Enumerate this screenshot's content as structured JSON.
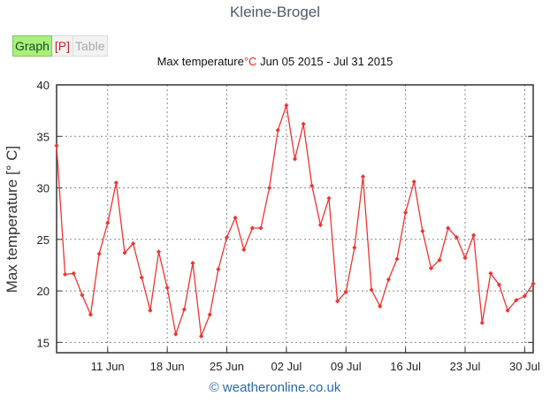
{
  "page": {
    "title": "Kleine-Brogel"
  },
  "tabs": [
    {
      "label": "Graph",
      "active": true
    },
    {
      "label": "[P]"
    },
    {
      "label": "Table"
    }
  ],
  "credit": {
    "symbol": "©",
    "text": "weatheronline.co.uk"
  },
  "colors": {
    "series": "#ee3333",
    "grid": "#888888",
    "tab_active": "#a8f07c",
    "credit": "#2a6aaa"
  },
  "chart_data": {
    "type": "line",
    "title": "Max temperature",
    "title_unit": "°C",
    "title_range": "Jun 05 2015 - Jul 31 2015",
    "ylabel": "Max temperature [° C]",
    "xlabel": "",
    "ylim": [
      14,
      40
    ],
    "yticks": [
      15,
      20,
      25,
      30,
      35,
      40
    ],
    "xlim": [
      "2015-06-05",
      "2015-07-31"
    ],
    "xticks": [
      {
        "date": "2015-06-11",
        "label": "11 Jun"
      },
      {
        "date": "2015-06-18",
        "label": "18 Jun"
      },
      {
        "date": "2015-06-25",
        "label": "25 Jun"
      },
      {
        "date": "2015-07-02",
        "label": "02 Jul"
      },
      {
        "date": "2015-07-09",
        "label": "09 Jul"
      },
      {
        "date": "2015-07-16",
        "label": "16 Jul"
      },
      {
        "date": "2015-07-23",
        "label": "23 Jul"
      },
      {
        "date": "2015-07-30",
        "label": "30 Jul"
      }
    ],
    "grid": true,
    "series": [
      {
        "x": [
          "2015-06-05",
          "2015-06-06",
          "2015-06-07",
          "2015-06-08",
          "2015-06-09",
          "2015-06-10",
          "2015-06-11",
          "2015-06-12",
          "2015-06-13",
          "2015-06-14",
          "2015-06-15",
          "2015-06-16",
          "2015-06-17",
          "2015-06-18",
          "2015-06-19",
          "2015-06-20",
          "2015-06-21",
          "2015-06-22",
          "2015-06-23",
          "2015-06-24",
          "2015-06-25",
          "2015-06-26",
          "2015-06-27",
          "2015-06-28",
          "2015-06-29",
          "2015-06-30",
          "2015-07-01",
          "2015-07-02",
          "2015-07-03",
          "2015-07-04",
          "2015-07-05",
          "2015-07-06",
          "2015-07-07",
          "2015-07-08",
          "2015-07-09",
          "2015-07-10",
          "2015-07-11",
          "2015-07-12",
          "2015-07-13",
          "2015-07-14",
          "2015-07-15",
          "2015-07-16",
          "2015-07-17",
          "2015-07-18",
          "2015-07-19",
          "2015-07-20",
          "2015-07-21",
          "2015-07-22",
          "2015-07-23",
          "2015-07-24",
          "2015-07-25",
          "2015-07-26",
          "2015-07-27",
          "2015-07-28",
          "2015-07-29",
          "2015-07-30",
          "2015-07-31"
        ],
        "values": [
          34.1,
          21.6,
          21.7,
          19.6,
          17.7,
          23.6,
          26.6,
          30.5,
          23.7,
          24.6,
          21.3,
          18.1,
          23.8,
          20.3,
          15.8,
          18.2,
          22.7,
          15.6,
          17.7,
          22.1,
          25.2,
          27.1,
          24.0,
          26.1,
          26.1,
          30.0,
          35.6,
          38.0,
          32.8,
          36.2,
          30.2,
          26.4,
          29.0,
          19.0,
          19.9,
          24.2,
          31.1,
          20.1,
          18.5,
          21.1,
          23.1,
          27.6,
          30.6,
          25.8,
          22.2,
          23.0,
          26.1,
          25.2,
          23.2,
          25.4,
          16.9,
          21.7,
          20.6,
          18.1,
          19.1,
          19.5,
          20.7
        ]
      }
    ]
  }
}
